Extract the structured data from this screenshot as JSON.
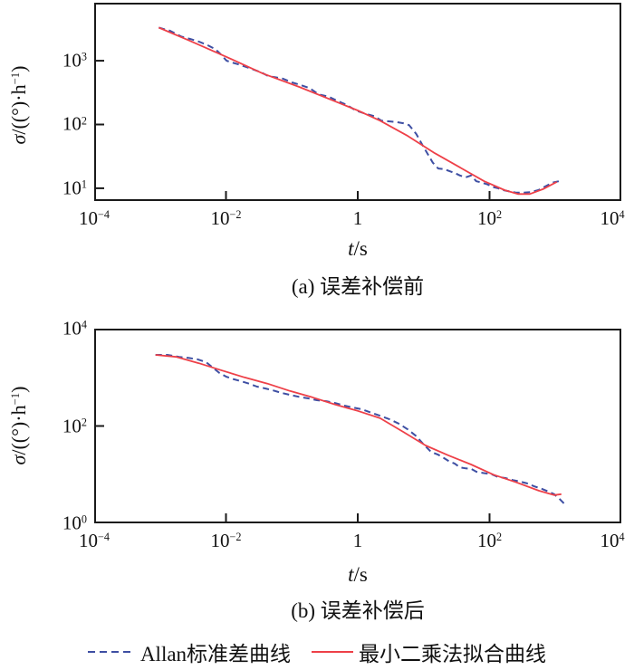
{
  "figure": {
    "background": "#ffffff",
    "legend": {
      "items": [
        {
          "label": "Allan标准差曲线",
          "style": "dashed",
          "color": "#3E4FA3"
        },
        {
          "label": "最小二乘法拟合曲线",
          "style": "solid",
          "color": "#EE4048"
        }
      ]
    },
    "axis_color": "#1a1a1a"
  },
  "chart_data": [
    {
      "id": "a",
      "type": "line",
      "caption": "(a) 误差补偿前",
      "xlabel": "_t_/s",
      "ylabel": "_σ_/((°)·h^{−1})",
      "x_scale": "log10",
      "y_scale": "log10",
      "xlim_log10": [
        -4,
        4
      ],
      "ylim_log10": [
        0.8,
        3.91
      ],
      "grid": false,
      "x_ticks": [
        {
          "log10": -4,
          "label": "10^{−4}"
        },
        {
          "log10": -2,
          "label": "10^{−2}"
        },
        {
          "log10": 0,
          "label": "1"
        },
        {
          "log10": 2,
          "label": "10^{2}"
        },
        {
          "log10": 4,
          "label": "10^{4}"
        }
      ],
      "y_ticks": [
        {
          "log10": 3,
          "label": "10^{3}"
        },
        {
          "log10": 2,
          "label": "10^{2}"
        },
        {
          "log10": 1,
          "label": "10^{1}"
        }
      ],
      "series": [
        {
          "name": "Allan标准差曲线",
          "style": "dashed",
          "color": "#3E4FA3",
          "points_log10": [
            [
              -3.02,
              3.52
            ],
            [
              -2.85,
              3.47
            ],
            [
              -2.68,
              3.38
            ],
            [
              -2.54,
              3.34
            ],
            [
              -2.41,
              3.3
            ],
            [
              -2.27,
              3.24
            ],
            [
              -2.16,
              3.18
            ],
            [
              -2.08,
              3.1
            ],
            [
              -1.99,
              3.0
            ],
            [
              -1.9,
              2.97
            ],
            [
              -1.8,
              2.94
            ],
            [
              -1.69,
              2.9
            ],
            [
              -1.58,
              2.86
            ],
            [
              -1.47,
              2.82
            ],
            [
              -1.36,
              2.76
            ],
            [
              -1.25,
              2.74
            ],
            [
              -1.14,
              2.72
            ],
            [
              -1.0,
              2.66
            ],
            [
              -0.87,
              2.62
            ],
            [
              -0.73,
              2.57
            ],
            [
              -0.59,
              2.47
            ],
            [
              -0.45,
              2.44
            ],
            [
              -0.31,
              2.37
            ],
            [
              -0.17,
              2.31
            ],
            [
              -0.03,
              2.22
            ],
            [
              0.11,
              2.17
            ],
            [
              0.25,
              2.13
            ],
            [
              0.36,
              2.06
            ],
            [
              0.47,
              2.05
            ],
            [
              0.58,
              2.04
            ],
            [
              0.69,
              2.02
            ],
            [
              0.78,
              1.99
            ],
            [
              0.89,
              1.85
            ],
            [
              0.98,
              1.68
            ],
            [
              1.06,
              1.54
            ],
            [
              1.14,
              1.4
            ],
            [
              1.22,
              1.31
            ],
            [
              1.31,
              1.3
            ],
            [
              1.39,
              1.27
            ],
            [
              1.47,
              1.24
            ],
            [
              1.55,
              1.2
            ],
            [
              1.64,
              1.17
            ],
            [
              1.72,
              1.2
            ],
            [
              1.8,
              1.11
            ],
            [
              1.88,
              1.09
            ],
            [
              1.97,
              1.06
            ],
            [
              2.05,
              1.02
            ],
            [
              2.13,
              1.0
            ],
            [
              2.21,
              0.97
            ],
            [
              2.3,
              0.95
            ],
            [
              2.41,
              0.93
            ],
            [
              2.52,
              0.93
            ],
            [
              2.63,
              0.94
            ],
            [
              2.74,
              0.97
            ],
            [
              2.85,
              1.03
            ],
            [
              2.96,
              1.09
            ],
            [
              3.05,
              1.11
            ]
          ]
        },
        {
          "name": "最小二乘法拟合曲线",
          "style": "solid",
          "color": "#EE4048",
          "points_log10": [
            [
              -3.02,
              3.52
            ],
            [
              -2.54,
              3.31
            ],
            [
              -1.99,
              3.06
            ],
            [
              -1.44,
              2.8
            ],
            [
              -0.89,
              2.59
            ],
            [
              -0.34,
              2.36
            ],
            [
              0.0,
              2.22
            ],
            [
              0.34,
              2.06
            ],
            [
              0.76,
              1.82
            ],
            [
              1.17,
              1.55
            ],
            [
              1.58,
              1.31
            ],
            [
              1.92,
              1.11
            ],
            [
              2.23,
              0.97
            ],
            [
              2.43,
              0.91
            ],
            [
              2.61,
              0.91
            ],
            [
              2.82,
              0.99
            ],
            [
              3.02,
              1.1
            ]
          ]
        }
      ]
    },
    {
      "id": "b",
      "type": "line",
      "caption": "(b) 误差补偿后",
      "xlabel": "_t_/s",
      "ylabel": "_σ_/((°)·h^{−1})",
      "x_scale": "log10",
      "y_scale": "log10",
      "xlim_log10": [
        -4,
        4
      ],
      "ylim_log10": [
        0,
        4
      ],
      "grid": false,
      "x_ticks": [
        {
          "log10": -4,
          "label": "10^{−4}"
        },
        {
          "log10": -2,
          "label": "10^{−2}"
        },
        {
          "log10": 0,
          "label": "1"
        },
        {
          "log10": 2,
          "label": "10^{2}"
        },
        {
          "log10": 4,
          "label": "10^{4}"
        }
      ],
      "y_ticks": [
        {
          "log10": 4,
          "label": "10^{4}"
        },
        {
          "log10": 2,
          "label": "10^{2}"
        },
        {
          "log10": 0,
          "label": "10^{0}"
        }
      ],
      "series": [
        {
          "name": "Allan标准差曲线",
          "style": "dashed",
          "color": "#3E4FA3",
          "points_log10": [
            [
              -3.07,
              3.46
            ],
            [
              -2.89,
              3.46
            ],
            [
              -2.71,
              3.42
            ],
            [
              -2.57,
              3.4
            ],
            [
              -2.43,
              3.37
            ],
            [
              -2.3,
              3.31
            ],
            [
              -2.2,
              3.2
            ],
            [
              -2.1,
              3.09
            ],
            [
              -1.99,
              3.01
            ],
            [
              -1.88,
              2.96
            ],
            [
              -1.77,
              2.92
            ],
            [
              -1.65,
              2.87
            ],
            [
              -1.53,
              2.81
            ],
            [
              -1.4,
              2.77
            ],
            [
              -1.28,
              2.73
            ],
            [
              -1.16,
              2.68
            ],
            [
              -1.03,
              2.64
            ],
            [
              -0.89,
              2.6
            ],
            [
              -0.76,
              2.57
            ],
            [
              -0.62,
              2.53
            ],
            [
              -0.48,
              2.51
            ],
            [
              -0.34,
              2.47
            ],
            [
              -0.21,
              2.42
            ],
            [
              -0.07,
              2.38
            ],
            [
              0.07,
              2.34
            ],
            [
              0.21,
              2.27
            ],
            [
              0.34,
              2.21
            ],
            [
              0.48,
              2.14
            ],
            [
              0.62,
              2.05
            ],
            [
              0.76,
              1.93
            ],
            [
              0.89,
              1.79
            ],
            [
              1.0,
              1.62
            ],
            [
              1.11,
              1.47
            ],
            [
              1.22,
              1.41
            ],
            [
              1.31,
              1.34
            ],
            [
              1.39,
              1.27
            ],
            [
              1.47,
              1.23
            ],
            [
              1.55,
              1.15
            ],
            [
              1.64,
              1.13
            ],
            [
              1.72,
              1.12
            ],
            [
              1.8,
              1.06
            ],
            [
              1.88,
              1.04
            ],
            [
              1.97,
              1.02
            ],
            [
              2.05,
              1.0
            ],
            [
              2.13,
              0.95
            ],
            [
              2.24,
              0.93
            ],
            [
              2.35,
              0.89
            ],
            [
              2.46,
              0.86
            ],
            [
              2.57,
              0.82
            ],
            [
              2.68,
              0.76
            ],
            [
              2.79,
              0.71
            ],
            [
              2.9,
              0.65
            ],
            [
              2.98,
              0.6
            ],
            [
              3.05,
              0.52
            ],
            [
              3.1,
              0.45
            ],
            [
              3.13,
              0.41
            ]
          ]
        },
        {
          "name": "最小二乘法拟合曲线",
          "style": "solid",
          "color": "#EE4048",
          "points_log10": [
            [
              -3.07,
              3.46
            ],
            [
              -2.75,
              3.42
            ],
            [
              -2.41,
              3.29
            ],
            [
              -2.06,
              3.14
            ],
            [
              -1.72,
              3.0
            ],
            [
              -1.37,
              2.87
            ],
            [
              -1.03,
              2.72
            ],
            [
              -0.69,
              2.59
            ],
            [
              -0.34,
              2.44
            ],
            [
              0.0,
              2.31
            ],
            [
              0.34,
              2.16
            ],
            [
              0.69,
              1.88
            ],
            [
              1.03,
              1.6
            ],
            [
              1.37,
              1.4
            ],
            [
              1.72,
              1.21
            ],
            [
              2.06,
              1.0
            ],
            [
              2.41,
              0.84
            ],
            [
              2.75,
              0.67
            ],
            [
              2.98,
              0.58
            ],
            [
              3.09,
              0.6
            ]
          ]
        }
      ]
    }
  ]
}
